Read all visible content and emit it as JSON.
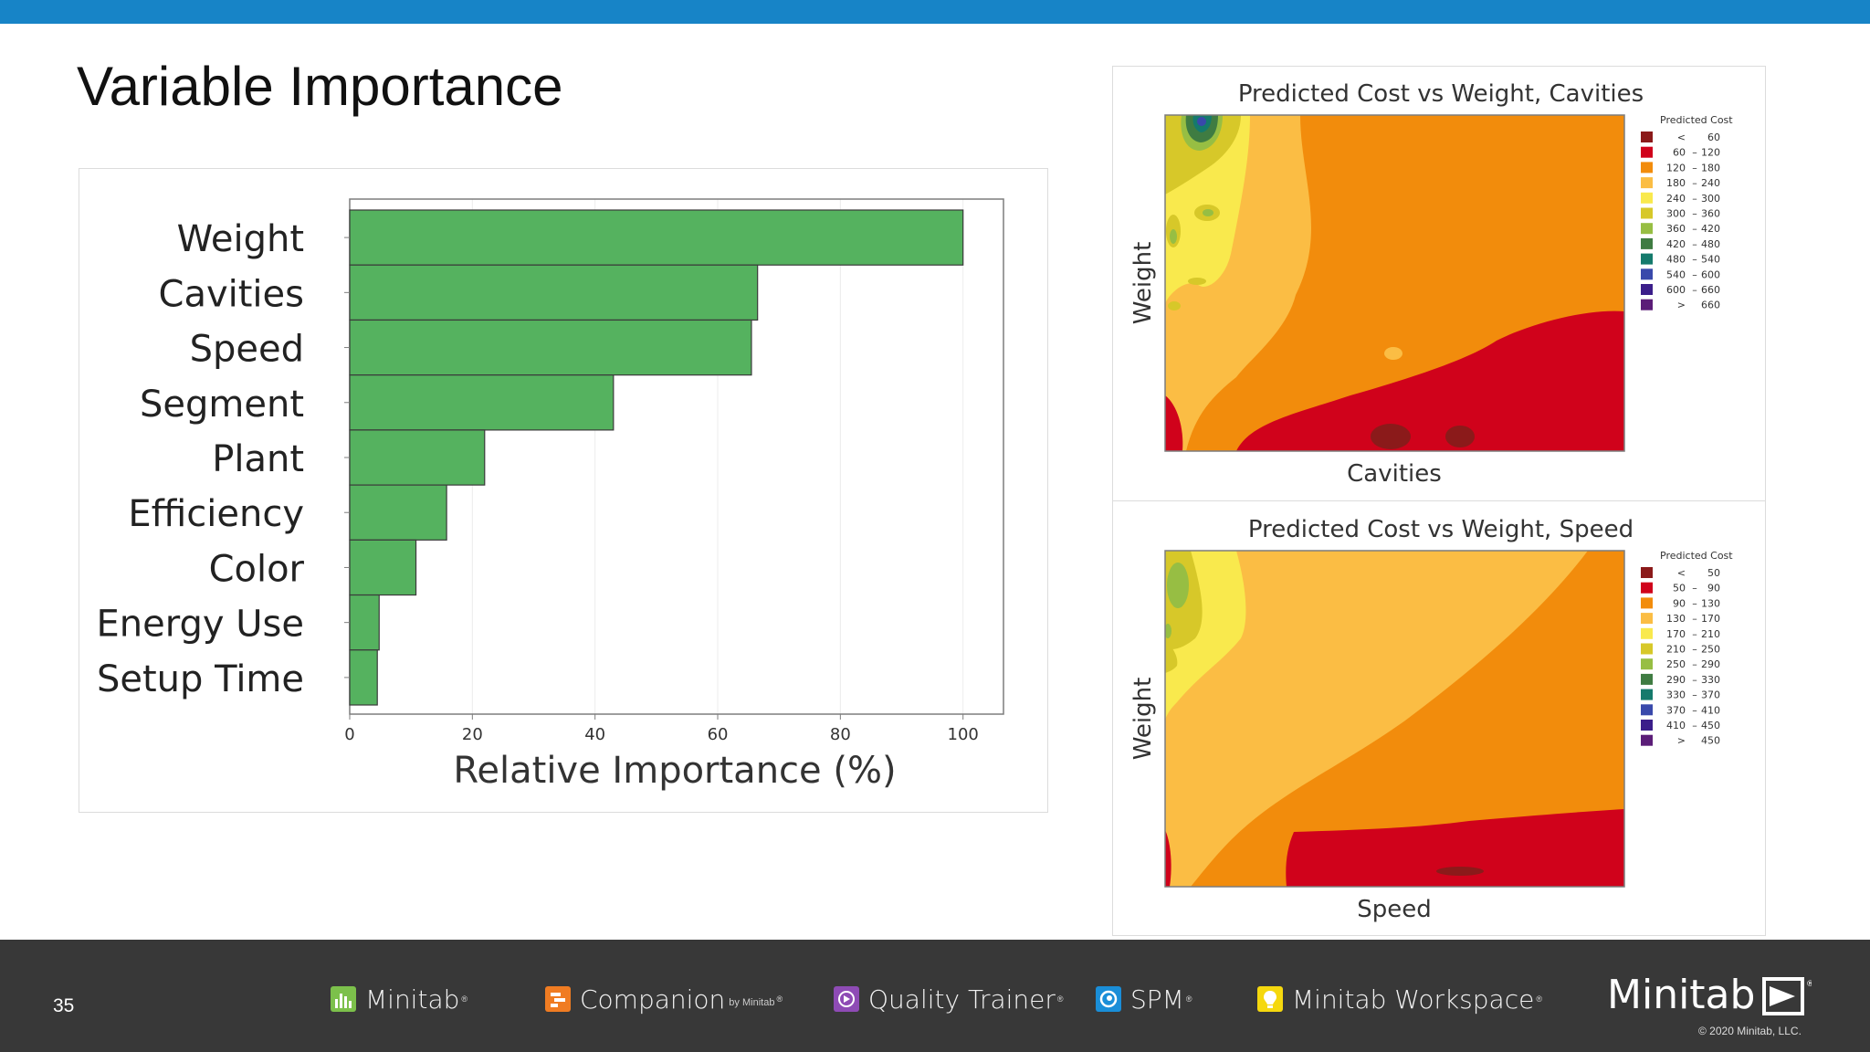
{
  "slide": {
    "title": "Variable Importance",
    "page_number": "35"
  },
  "bar_chart": {
    "chart_data": {
      "type": "bar",
      "orientation": "horizontal",
      "categories": [
        "Weight",
        "Cavities",
        "Speed",
        "Segment",
        "Plant",
        "Efficiency",
        "Color",
        "Energy Use",
        "Setup Time"
      ],
      "values": [
        100,
        66.5,
        65.5,
        43,
        22,
        15.8,
        10.8,
        4.8,
        4.5
      ],
      "xlabel": "Relative Importance (%)",
      "ylabel": "",
      "xlim": [
        0,
        106
      ],
      "xticks": [
        0,
        20,
        40,
        60,
        80,
        100
      ],
      "bar_color": "#55b25f",
      "grid": true
    }
  },
  "contour_plots": [
    {
      "title": "Predicted Cost vs Weight, Cavities",
      "xlabel": "Cavities",
      "ylabel": "Weight",
      "legend_title": "Predicted Cost",
      "legend": [
        {
          "lo": "<",
          "hi": "60",
          "color": "#8b1a1a"
        },
        {
          "lo": "60",
          "hi": "120",
          "color": "#d0021b"
        },
        {
          "lo": "120",
          "hi": "180",
          "color": "#f28c0c"
        },
        {
          "lo": "180",
          "hi": "240",
          "color": "#fbbd44"
        },
        {
          "lo": "240",
          "hi": "300",
          "color": "#f9e94d"
        },
        {
          "lo": "300",
          "hi": "360",
          "color": "#d7c829"
        },
        {
          "lo": "360",
          "hi": "420",
          "color": "#97be43"
        },
        {
          "lo": "420",
          "hi": "480",
          "color": "#3f7c42"
        },
        {
          "lo": "480",
          "hi": "540",
          "color": "#157a6c"
        },
        {
          "lo": "540",
          "hi": "600",
          "color": "#3949ab"
        },
        {
          "lo": "600",
          "hi": "660",
          "color": "#3b1e8a"
        },
        {
          "lo": ">",
          "hi": "660",
          "color": "#5b1d78"
        }
      ]
    },
    {
      "title": "Predicted Cost vs Weight, Speed",
      "xlabel": "Speed",
      "ylabel": "Weight",
      "legend_title": "Predicted Cost",
      "legend": [
        {
          "lo": "<",
          "hi": "50",
          "color": "#8b1a1a"
        },
        {
          "lo": "50",
          "hi": "90",
          "color": "#d0021b"
        },
        {
          "lo": "90",
          "hi": "130",
          "color": "#f28c0c"
        },
        {
          "lo": "130",
          "hi": "170",
          "color": "#fbbd44"
        },
        {
          "lo": "170",
          "hi": "210",
          "color": "#f9e94d"
        },
        {
          "lo": "210",
          "hi": "250",
          "color": "#d7c829"
        },
        {
          "lo": "250",
          "hi": "290",
          "color": "#97be43"
        },
        {
          "lo": "290",
          "hi": "330",
          "color": "#3f7c42"
        },
        {
          "lo": "330",
          "hi": "370",
          "color": "#157a6c"
        },
        {
          "lo": "370",
          "hi": "410",
          "color": "#3949ab"
        },
        {
          "lo": "410",
          "hi": "450",
          "color": "#3b1e8a"
        },
        {
          "lo": ">",
          "hi": "450",
          "color": "#5b1d78"
        }
      ]
    }
  ],
  "footer": {
    "brands": [
      {
        "name": "Minitab",
        "icon": "minitab-bars-icon",
        "color": "#7cc04b"
      },
      {
        "name": "Companion",
        "by": "by Minitab",
        "icon": "companion-icon",
        "color": "#f07c22"
      },
      {
        "name": "Quality Trainer",
        "icon": "quality-trainer-icon",
        "color": "#8e4bb5"
      },
      {
        "name": "SPM",
        "icon": "spm-icon",
        "color": "#1a8ed8"
      },
      {
        "name": "Minitab Workspace",
        "icon": "workspace-icon",
        "color": "#f5d80e"
      }
    ],
    "logo_text": "Minitab",
    "copyright": "© 2020 Minitab, LLC."
  },
  "colors": {
    "topbar": "#1784c7",
    "footer": "#383838"
  }
}
